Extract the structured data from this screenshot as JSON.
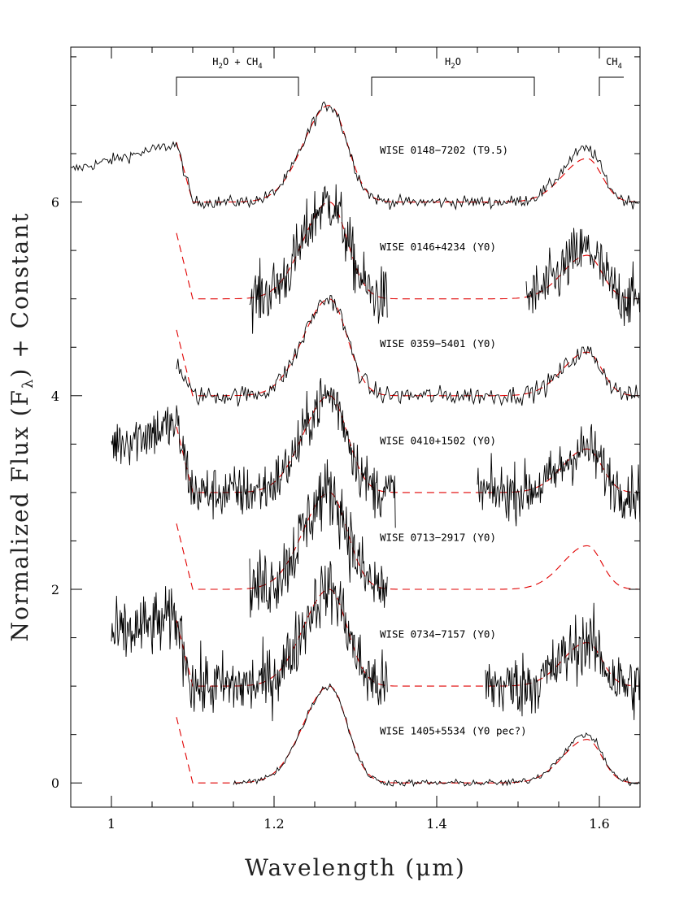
{
  "chart_data": {
    "type": "line",
    "xlabel": "Wavelength (μm)",
    "ylabel": "Normalized Flux (F",
    "ylabel_sub": "λ",
    "ylabel_tail": ") + Constant",
    "xlim": [
      0.95,
      1.65
    ],
    "ylim": [
      -0.25,
      7.6
    ],
    "x_ticks": [
      1.0,
      1.2,
      1.4,
      1.6
    ],
    "x_tick_labels": [
      "1",
      "1.2",
      "1.4",
      "1.6"
    ],
    "y_ticks": [
      0,
      2,
      4,
      6
    ],
    "y_tick_labels": [
      "0",
      "2",
      "4",
      "6"
    ],
    "bands": [
      {
        "main": "H",
        "sub": "2",
        "tail": "O + CH",
        "sub2": "4",
        "x_start": 1.08,
        "x_end": 1.23,
        "open_end": false
      },
      {
        "main": "H",
        "sub": "2",
        "tail": "O",
        "sub2": "",
        "x_start": 1.32,
        "x_end": 1.52,
        "open_end": false
      },
      {
        "main": "CH",
        "sub": "4",
        "tail": "",
        "sub2": "",
        "x_start": 1.6,
        "x_end": 1.63,
        "open_end": true
      }
    ],
    "series": [
      {
        "name": "WISE 0148−7202 (T9.5)",
        "offset": 6.0,
        "label_x": 1.33,
        "label_y": 6.5,
        "pre_peak": 0.6,
        "j_peak": 1.0,
        "h_peak": 0.55,
        "model_h_peak": 0.45,
        "noise": 0.045,
        "segments": [
          [
            0.95,
            1.65
          ]
        ]
      },
      {
        "name": "WISE 0146+4234 (Y0)",
        "offset": 5.0,
        "label_x": 1.33,
        "label_y": 5.5,
        "pre_peak": 0.7,
        "j_peak": 1.0,
        "h_peak": 0.5,
        "model_h_peak": 0.45,
        "noise": 0.22,
        "segments": [
          [
            1.17,
            1.34
          ],
          [
            1.51,
            1.65
          ]
        ]
      },
      {
        "name": "WISE 0359−5401 (Y0)",
        "offset": 4.0,
        "label_x": 1.33,
        "label_y": 4.5,
        "pre_peak": 0.35,
        "j_peak": 1.0,
        "h_peak": 0.45,
        "model_h_peak": 0.45,
        "noise": 0.07,
        "segments": [
          [
            1.08,
            1.65
          ]
        ]
      },
      {
        "name": "WISE 0410+1502 (Y0)",
        "offset": 3.0,
        "label_x": 1.33,
        "label_y": 3.5,
        "pre_peak": 0.7,
        "j_peak": 1.0,
        "h_peak": 0.45,
        "model_h_peak": 0.45,
        "noise": 0.2,
        "segments": [
          [
            1.0,
            1.35
          ],
          [
            1.45,
            1.65
          ]
        ]
      },
      {
        "name": "WISE 0713−2917 (Y0)",
        "offset": 2.0,
        "label_x": 1.33,
        "label_y": 2.5,
        "pre_peak": 0.7,
        "j_peak": 1.0,
        "h_peak": 0.45,
        "model_h_peak": 0.45,
        "noise": 0.26,
        "segments": [
          [
            1.17,
            1.34
          ]
        ]
      },
      {
        "name": "WISE 0734−7157 (Y0)",
        "offset": 1.0,
        "label_x": 1.33,
        "label_y": 1.5,
        "pre_peak": 0.7,
        "j_peak": 1.0,
        "h_peak": 0.45,
        "model_h_peak": 0.45,
        "noise": 0.24,
        "segments": [
          [
            1.0,
            1.34
          ],
          [
            1.46,
            1.65
          ]
        ]
      },
      {
        "name": "WISE 1405+5534 (Y0 pec?)",
        "offset": 0.0,
        "label_x": 1.33,
        "label_y": 0.5,
        "pre_peak": 0.0,
        "j_peak": 1.0,
        "h_peak": 0.5,
        "model_h_peak": 0.45,
        "noise": 0.025,
        "segments": [
          [
            1.15,
            1.65
          ]
        ]
      }
    ]
  }
}
